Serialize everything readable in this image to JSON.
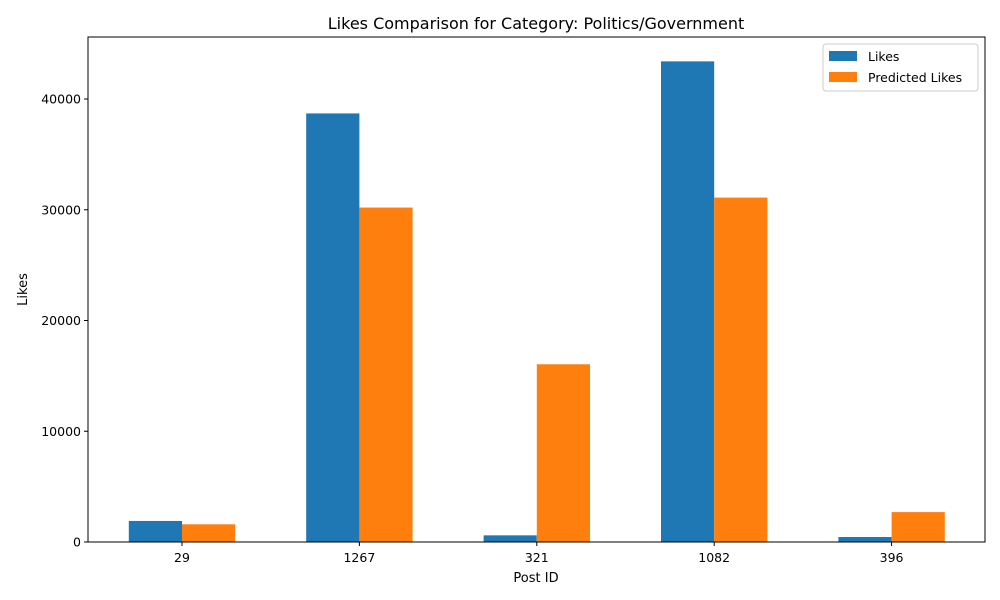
{
  "chart_data": {
    "type": "bar",
    "title": "Likes Comparison for Category: Politics/Government",
    "xlabel": "Post ID",
    "ylabel": "Likes",
    "categories": [
      "29",
      "1267",
      "321",
      "1082",
      "396"
    ],
    "series": [
      {
        "name": "Likes",
        "color": "#1f77b4",
        "values": [
          1900,
          38700,
          600,
          43400,
          450
        ]
      },
      {
        "name": "Predicted Likes",
        "color": "#ff7f0e",
        "values": [
          1600,
          30200,
          16050,
          31100,
          2700
        ]
      }
    ],
    "yticks": [
      0,
      10000,
      20000,
      30000,
      40000
    ],
    "ylim": [
      0,
      45600
    ],
    "grid": false,
    "legend_position": "top-right"
  }
}
